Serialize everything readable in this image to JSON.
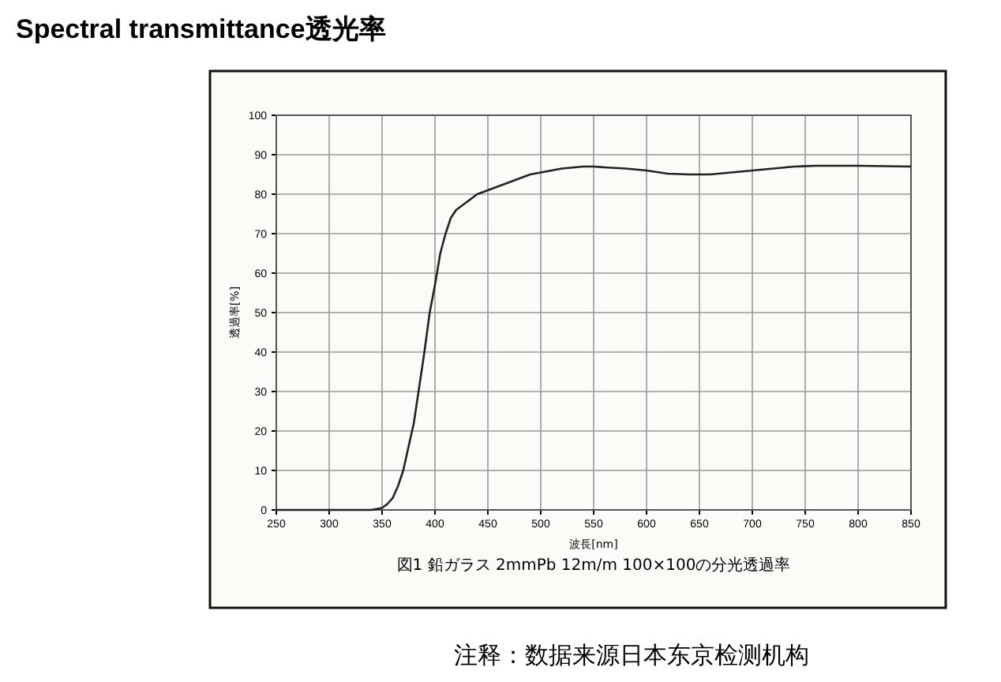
{
  "chart_data": {
    "type": "line",
    "title": "Spectral transmittance透光率",
    "subtitle": "図1 鉛ガラス 2mmPb 12m/m 100×100の分光透過率",
    "xlabel": "波長[nm]",
    "ylabel": "透過率[%]",
    "annotations": [
      "注释：数据来源日本东京检测机构"
    ],
    "x": [
      250,
      300,
      340,
      350,
      355,
      360,
      365,
      370,
      375,
      380,
      385,
      390,
      395,
      400,
      405,
      410,
      415,
      420,
      430,
      440,
      450,
      460,
      470,
      480,
      490,
      500,
      520,
      540,
      550,
      560,
      580,
      600,
      620,
      640,
      660,
      680,
      700,
      720,
      740,
      760,
      800,
      850
    ],
    "series": [
      {
        "color": "#222222",
        "values": [
          0,
          0,
          0,
          0.5,
          1.5,
          3,
          6,
          10,
          16,
          22,
          31,
          40,
          50,
          57,
          65,
          70,
          74,
          76,
          78,
          80,
          81,
          82,
          83,
          84,
          85,
          85.5,
          86.5,
          87,
          87,
          86.8,
          86.5,
          86,
          85.2,
          85,
          85,
          85.5,
          86,
          86.5,
          87,
          87.2,
          87.2,
          87
        ]
      }
    ],
    "xlim": [
      250,
      850
    ],
    "xticks": [
      250,
      300,
      350,
      400,
      450,
      500,
      550,
      600,
      650,
      700,
      750,
      800,
      850
    ],
    "ylim": [
      0,
      100
    ],
    "yticks": [
      0,
      10,
      20,
      30,
      40,
      50,
      60,
      70,
      80,
      90,
      100
    ],
    "grid": true,
    "line_style": "solid",
    "marker": "none"
  }
}
